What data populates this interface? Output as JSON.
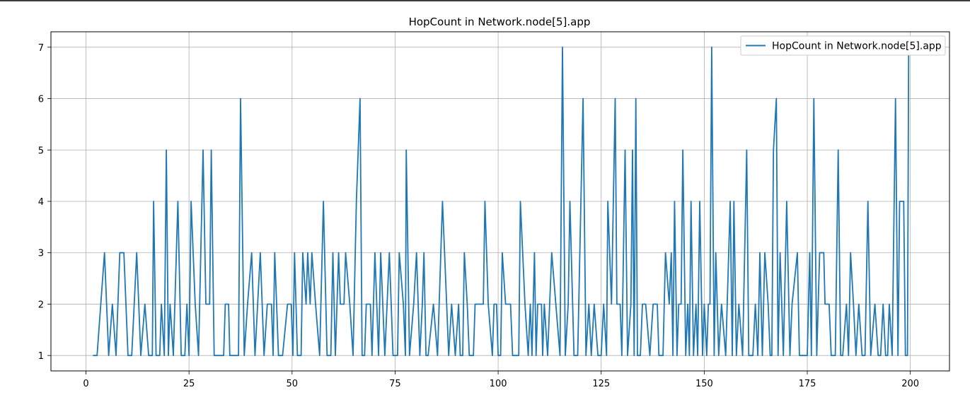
{
  "chart_data": {
    "type": "line",
    "title": "HopCount in Network.node[5].app",
    "xlabel": "",
    "ylabel": "",
    "xlim": [
      -8.5,
      209.5
    ],
    "ylim": [
      0.7,
      7.3
    ],
    "xticks": [
      0,
      25,
      50,
      75,
      100,
      125,
      150,
      175,
      200
    ],
    "yticks": [
      1,
      2,
      3,
      4,
      5,
      6,
      7
    ],
    "grid": true,
    "legend": "top-right",
    "series": [
      {
        "name": "HopCount in Network.node[5].app",
        "color": "#1f77b4",
        "points": [
          [
            1.7,
            1
          ],
          [
            2.7,
            1
          ],
          [
            4.5,
            3
          ],
          [
            5.5,
            1
          ],
          [
            6.4,
            2
          ],
          [
            7.3,
            1
          ],
          [
            8.2,
            3
          ],
          [
            9.2,
            3
          ],
          [
            10.2,
            1
          ],
          [
            11.1,
            1
          ],
          [
            12.3,
            3
          ],
          [
            13.3,
            1
          ],
          [
            14.3,
            2
          ],
          [
            15.2,
            1
          ],
          [
            16.1,
            1
          ],
          [
            16.4,
            4
          ],
          [
            17.0,
            1
          ],
          [
            17.9,
            1
          ],
          [
            18.3,
            2
          ],
          [
            19.0,
            1
          ],
          [
            19.5,
            5
          ],
          [
            20.0,
            1
          ],
          [
            20.4,
            2
          ],
          [
            21.2,
            1
          ],
          [
            22.3,
            4
          ],
          [
            23.1,
            1
          ],
          [
            24.0,
            1
          ],
          [
            24.5,
            2
          ],
          [
            25.0,
            1
          ],
          [
            25.5,
            4
          ],
          [
            26.5,
            2
          ],
          [
            27.3,
            1
          ],
          [
            28.4,
            5
          ],
          [
            29.1,
            2
          ],
          [
            30.0,
            2
          ],
          [
            30.4,
            5
          ],
          [
            31.1,
            1
          ],
          [
            32.0,
            1
          ],
          [
            33.4,
            1
          ],
          [
            33.8,
            2
          ],
          [
            34.6,
            2
          ],
          [
            34.9,
            1
          ],
          [
            36.0,
            1
          ],
          [
            37.0,
            1
          ],
          [
            37.5,
            6
          ],
          [
            38.4,
            1
          ],
          [
            39.2,
            2
          ],
          [
            40.2,
            3
          ],
          [
            41.0,
            1
          ],
          [
            42.3,
            3
          ],
          [
            43.2,
            1
          ],
          [
            44.0,
            2
          ],
          [
            45.0,
            2
          ],
          [
            45.4,
            1
          ],
          [
            45.8,
            3
          ],
          [
            46.7,
            1
          ],
          [
            47.7,
            1
          ],
          [
            48.9,
            2
          ],
          [
            49.8,
            2
          ],
          [
            50.2,
            1
          ],
          [
            50.6,
            3
          ],
          [
            51.3,
            1
          ],
          [
            52.2,
            1
          ],
          [
            52.6,
            3
          ],
          [
            53.4,
            2
          ],
          [
            53.8,
            3
          ],
          [
            54.4,
            2
          ],
          [
            54.8,
            3
          ],
          [
            55.7,
            2
          ],
          [
            56.7,
            1
          ],
          [
            57.6,
            4
          ],
          [
            58.5,
            1
          ],
          [
            59.4,
            1
          ],
          [
            59.9,
            3
          ],
          [
            60.5,
            1
          ],
          [
            61.3,
            3
          ],
          [
            61.7,
            2
          ],
          [
            62.6,
            2
          ],
          [
            63.0,
            3
          ],
          [
            64.0,
            2
          ],
          [
            64.8,
            1
          ],
          [
            65.6,
            4
          ],
          [
            66.5,
            6
          ],
          [
            67.0,
            1
          ],
          [
            67.6,
            1
          ],
          [
            68.0,
            2
          ],
          [
            69.0,
            2
          ],
          [
            69.4,
            1
          ],
          [
            70.1,
            3
          ],
          [
            71.0,
            1
          ],
          [
            71.5,
            3
          ],
          [
            72.5,
            1
          ],
          [
            73.6,
            3
          ],
          [
            74.5,
            1
          ],
          [
            75.6,
            1
          ],
          [
            76.0,
            3
          ],
          [
            77.0,
            2
          ],
          [
            77.5,
            1
          ],
          [
            77.7,
            5
          ],
          [
            78.5,
            1
          ],
          [
            79.5,
            2
          ],
          [
            80.2,
            3
          ],
          [
            81.0,
            1
          ],
          [
            81.6,
            2
          ],
          [
            82.0,
            3
          ],
          [
            82.5,
            1
          ],
          [
            83.0,
            1
          ],
          [
            84.3,
            2
          ],
          [
            85.3,
            1
          ],
          [
            86.5,
            4
          ],
          [
            87.5,
            2
          ],
          [
            88.0,
            1
          ],
          [
            88.7,
            2
          ],
          [
            89.6,
            1
          ],
          [
            90.4,
            2
          ],
          [
            90.8,
            1
          ],
          [
            91.4,
            1
          ],
          [
            91.8,
            3
          ],
          [
            92.5,
            2
          ],
          [
            93.0,
            1
          ],
          [
            94.0,
            1
          ],
          [
            94.4,
            2
          ],
          [
            95.0,
            2
          ],
          [
            96.0,
            2
          ],
          [
            96.4,
            2
          ],
          [
            96.8,
            4
          ],
          [
            97.6,
            2
          ],
          [
            98.6,
            1
          ],
          [
            99.0,
            2
          ],
          [
            99.6,
            2
          ],
          [
            100.0,
            1
          ],
          [
            100.6,
            1
          ],
          [
            101.0,
            3
          ],
          [
            101.8,
            2
          ],
          [
            103.0,
            2
          ],
          [
            103.5,
            1
          ],
          [
            104.4,
            1
          ],
          [
            105.0,
            1
          ],
          [
            105.4,
            4
          ],
          [
            106.5,
            2
          ],
          [
            107.3,
            1
          ],
          [
            107.8,
            2
          ],
          [
            108.2,
            1
          ],
          [
            108.8,
            3
          ],
          [
            109.2,
            1
          ],
          [
            109.6,
            2
          ],
          [
            110.5,
            2
          ],
          [
            110.8,
            1
          ],
          [
            111.2,
            2
          ],
          [
            112.0,
            1
          ],
          [
            113.0,
            3
          ],
          [
            114.0,
            2
          ],
          [
            115.0,
            1
          ],
          [
            115.6,
            7
          ],
          [
            116.3,
            1
          ],
          [
            117.0,
            2
          ],
          [
            117.4,
            4
          ],
          [
            118.4,
            1
          ],
          [
            119.3,
            1
          ],
          [
            120.6,
            6
          ],
          [
            121.3,
            1
          ],
          [
            122.0,
            2
          ],
          [
            122.6,
            1
          ],
          [
            123.3,
            2
          ],
          [
            124.2,
            1
          ],
          [
            125.0,
            1
          ],
          [
            125.6,
            2
          ],
          [
            126.3,
            1
          ],
          [
            126.6,
            4
          ],
          [
            127.5,
            2
          ],
          [
            128.4,
            6
          ],
          [
            128.8,
            2
          ],
          [
            129.6,
            2
          ],
          [
            130.0,
            1
          ],
          [
            130.8,
            5
          ],
          [
            131.4,
            1
          ],
          [
            132.2,
            2
          ],
          [
            132.6,
            5
          ],
          [
            133.0,
            1
          ],
          [
            133.4,
            6
          ],
          [
            133.8,
            1
          ],
          [
            134.5,
            1
          ],
          [
            135.0,
            2
          ],
          [
            135.8,
            2
          ],
          [
            136.8,
            1
          ],
          [
            137.6,
            2
          ],
          [
            138.6,
            2
          ],
          [
            139.0,
            1
          ],
          [
            140.0,
            1
          ],
          [
            140.6,
            3
          ],
          [
            141.5,
            2
          ],
          [
            142.0,
            3
          ],
          [
            142.4,
            1
          ],
          [
            142.8,
            4
          ],
          [
            143.4,
            1
          ],
          [
            143.8,
            2
          ],
          [
            144.4,
            2
          ],
          [
            144.8,
            5
          ],
          [
            145.5,
            1
          ],
          [
            146.0,
            2
          ],
          [
            146.4,
            1
          ],
          [
            146.8,
            4
          ],
          [
            147.4,
            1
          ],
          [
            148.0,
            2
          ],
          [
            148.4,
            1
          ],
          [
            148.9,
            4
          ],
          [
            149.6,
            1
          ],
          [
            150.0,
            2
          ],
          [
            150.6,
            1
          ],
          [
            151.0,
            2
          ],
          [
            151.4,
            2
          ],
          [
            151.8,
            7
          ],
          [
            152.4,
            1
          ],
          [
            152.8,
            3
          ],
          [
            153.5,
            1
          ],
          [
            154.2,
            2
          ],
          [
            155.2,
            1
          ],
          [
            156.3,
            4
          ],
          [
            156.8,
            1
          ],
          [
            157.2,
            4
          ],
          [
            157.8,
            1
          ],
          [
            158.4,
            2
          ],
          [
            159.3,
            1
          ],
          [
            160.3,
            5
          ],
          [
            160.8,
            1
          ],
          [
            161.8,
            1
          ],
          [
            162.4,
            2
          ],
          [
            163.0,
            1
          ],
          [
            163.5,
            3
          ],
          [
            164.1,
            1
          ],
          [
            164.7,
            3
          ],
          [
            165.5,
            2
          ],
          [
            166.0,
            1
          ],
          [
            166.4,
            1
          ],
          [
            166.8,
            5
          ],
          [
            167.5,
            6
          ],
          [
            167.9,
            1
          ],
          [
            168.4,
            3
          ],
          [
            169.2,
            1
          ],
          [
            170.0,
            4
          ],
          [
            170.8,
            1
          ],
          [
            171.3,
            2
          ],
          [
            172.6,
            3
          ],
          [
            173.1,
            1
          ],
          [
            174.0,
            1
          ],
          [
            175.0,
            1
          ],
          [
            175.6,
            3
          ],
          [
            176.0,
            1
          ],
          [
            176.6,
            6
          ],
          [
            177.3,
            1
          ],
          [
            178.0,
            3
          ],
          [
            179.0,
            3
          ],
          [
            179.3,
            2
          ],
          [
            180.3,
            2
          ],
          [
            180.8,
            1
          ],
          [
            181.8,
            1
          ],
          [
            182.5,
            5
          ],
          [
            183.1,
            1
          ],
          [
            183.6,
            1
          ],
          [
            184.5,
            2
          ],
          [
            185.0,
            1
          ],
          [
            185.5,
            3
          ],
          [
            186.2,
            2
          ],
          [
            186.8,
            1
          ],
          [
            187.5,
            2
          ],
          [
            188.3,
            1
          ],
          [
            189.0,
            1
          ],
          [
            189.7,
            4
          ],
          [
            190.4,
            1
          ],
          [
            191.4,
            2
          ],
          [
            192.2,
            1
          ],
          [
            192.8,
            1
          ],
          [
            193.4,
            2
          ],
          [
            194.0,
            1
          ],
          [
            194.5,
            1
          ],
          [
            194.9,
            2
          ],
          [
            195.6,
            1
          ],
          [
            196.4,
            6
          ],
          [
            197.0,
            1
          ],
          [
            197.4,
            4
          ],
          [
            198.4,
            4
          ],
          [
            198.8,
            1
          ],
          [
            199.3,
            1
          ],
          [
            199.6,
            7
          ]
        ]
      }
    ]
  }
}
